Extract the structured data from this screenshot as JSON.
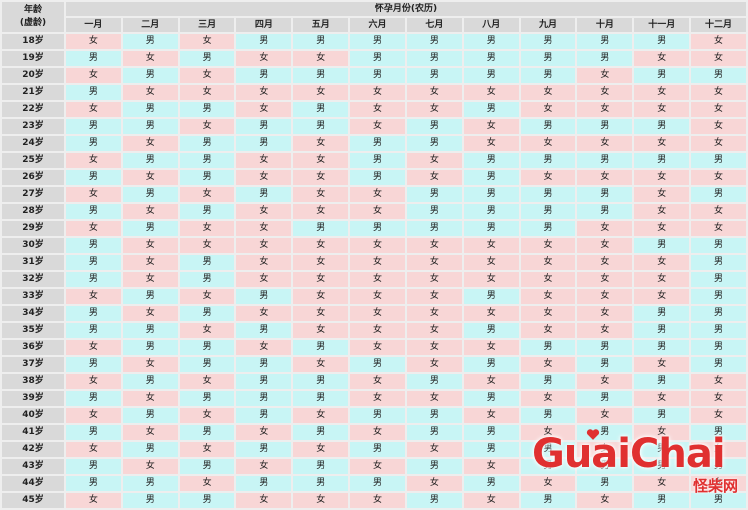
{
  "header": {
    "corner_line1": "年龄",
    "corner_line2": "(虚龄)",
    "title": "怀孕月份(农历)",
    "months": [
      "一月",
      "二月",
      "三月",
      "四月",
      "五月",
      "六月",
      "七月",
      "八月",
      "九月",
      "十月",
      "十一月",
      "十二月"
    ]
  },
  "rows": [
    {
      "age": "18岁",
      "cells": [
        "女",
        "男",
        "女",
        "男",
        "男",
        "男",
        "男",
        "男",
        "男",
        "男",
        "男",
        "女"
      ]
    },
    {
      "age": "19岁",
      "cells": [
        "男",
        "女",
        "男",
        "女",
        "女",
        "男",
        "男",
        "男",
        "男",
        "男",
        "女",
        "女"
      ]
    },
    {
      "age": "20岁",
      "cells": [
        "女",
        "男",
        "女",
        "男",
        "男",
        "男",
        "男",
        "男",
        "男",
        "女",
        "男",
        "男"
      ]
    },
    {
      "age": "21岁",
      "cells": [
        "男",
        "女",
        "女",
        "女",
        "女",
        "女",
        "女",
        "女",
        "女",
        "女",
        "女",
        "女"
      ]
    },
    {
      "age": "22岁",
      "cells": [
        "女",
        "男",
        "男",
        "女",
        "男",
        "女",
        "女",
        "男",
        "女",
        "女",
        "女",
        "女"
      ]
    },
    {
      "age": "23岁",
      "cells": [
        "男",
        "男",
        "女",
        "男",
        "男",
        "女",
        "男",
        "女",
        "男",
        "男",
        "男",
        "女"
      ]
    },
    {
      "age": "24岁",
      "cells": [
        "男",
        "女",
        "男",
        "男",
        "女",
        "男",
        "男",
        "女",
        "女",
        "女",
        "女",
        "女"
      ]
    },
    {
      "age": "25岁",
      "cells": [
        "女",
        "男",
        "男",
        "女",
        "女",
        "男",
        "女",
        "男",
        "男",
        "男",
        "男",
        "男"
      ]
    },
    {
      "age": "26岁",
      "cells": [
        "男",
        "女",
        "男",
        "女",
        "女",
        "男",
        "女",
        "男",
        "女",
        "女",
        "女",
        "女"
      ]
    },
    {
      "age": "27岁",
      "cells": [
        "女",
        "男",
        "女",
        "男",
        "女",
        "女",
        "男",
        "男",
        "男",
        "男",
        "女",
        "男"
      ]
    },
    {
      "age": "28岁",
      "cells": [
        "男",
        "女",
        "男",
        "女",
        "女",
        "女",
        "男",
        "男",
        "男",
        "男",
        "女",
        "女"
      ]
    },
    {
      "age": "29岁",
      "cells": [
        "女",
        "男",
        "女",
        "女",
        "男",
        "男",
        "男",
        "男",
        "男",
        "女",
        "女",
        "女"
      ]
    },
    {
      "age": "30岁",
      "cells": [
        "男",
        "女",
        "女",
        "女",
        "女",
        "女",
        "女",
        "女",
        "女",
        "女",
        "男",
        "男"
      ]
    },
    {
      "age": "31岁",
      "cells": [
        "男",
        "女",
        "男",
        "女",
        "女",
        "女",
        "女",
        "女",
        "女",
        "女",
        "女",
        "男"
      ]
    },
    {
      "age": "32岁",
      "cells": [
        "男",
        "女",
        "男",
        "女",
        "女",
        "女",
        "女",
        "女",
        "女",
        "女",
        "女",
        "男"
      ]
    },
    {
      "age": "33岁",
      "cells": [
        "女",
        "男",
        "女",
        "男",
        "女",
        "女",
        "女",
        "男",
        "女",
        "女",
        "女",
        "男"
      ]
    },
    {
      "age": "34岁",
      "cells": [
        "男",
        "女",
        "男",
        "女",
        "女",
        "女",
        "女",
        "女",
        "女",
        "女",
        "男",
        "男"
      ]
    },
    {
      "age": "35岁",
      "cells": [
        "男",
        "男",
        "女",
        "男",
        "女",
        "女",
        "女",
        "男",
        "女",
        "女",
        "男",
        "男"
      ]
    },
    {
      "age": "36岁",
      "cells": [
        "女",
        "男",
        "男",
        "女",
        "男",
        "女",
        "女",
        "女",
        "男",
        "男",
        "男",
        "男"
      ]
    },
    {
      "age": "37岁",
      "cells": [
        "男",
        "女",
        "男",
        "男",
        "女",
        "男",
        "女",
        "男",
        "女",
        "男",
        "女",
        "男"
      ]
    },
    {
      "age": "38岁",
      "cells": [
        "女",
        "男",
        "女",
        "男",
        "男",
        "女",
        "男",
        "女",
        "男",
        "女",
        "男",
        "女"
      ]
    },
    {
      "age": "39岁",
      "cells": [
        "男",
        "女",
        "男",
        "男",
        "男",
        "女",
        "女",
        "男",
        "女",
        "男",
        "女",
        "女"
      ]
    },
    {
      "age": "40岁",
      "cells": [
        "女",
        "男",
        "女",
        "男",
        "女",
        "男",
        "男",
        "女",
        "男",
        "女",
        "男",
        "女"
      ]
    },
    {
      "age": "41岁",
      "cells": [
        "男",
        "女",
        "男",
        "女",
        "男",
        "女",
        "男",
        "男",
        "女",
        "男",
        "女",
        "男"
      ]
    },
    {
      "age": "42岁",
      "cells": [
        "女",
        "男",
        "女",
        "男",
        "女",
        "男",
        "女",
        "男",
        "男",
        "女",
        "男",
        "女"
      ]
    },
    {
      "age": "43岁",
      "cells": [
        "男",
        "女",
        "男",
        "女",
        "男",
        "女",
        "男",
        "女",
        "男",
        "男",
        "男",
        "男"
      ]
    },
    {
      "age": "44岁",
      "cells": [
        "男",
        "男",
        "女",
        "男",
        "男",
        "男",
        "女",
        "男",
        "女",
        "男",
        "女",
        "女"
      ]
    },
    {
      "age": "45岁",
      "cells": [
        "女",
        "男",
        "男",
        "女",
        "女",
        "女",
        "男",
        "女",
        "男",
        "女",
        "男",
        "男"
      ]
    }
  ],
  "watermark": {
    "brand": "GuaiChai",
    "site": "怪柴网"
  },
  "colors": {
    "male": "#c8f5f5",
    "female": "#f8d6d6",
    "header": "#d9d9d9",
    "watermark": "#e03030"
  }
}
